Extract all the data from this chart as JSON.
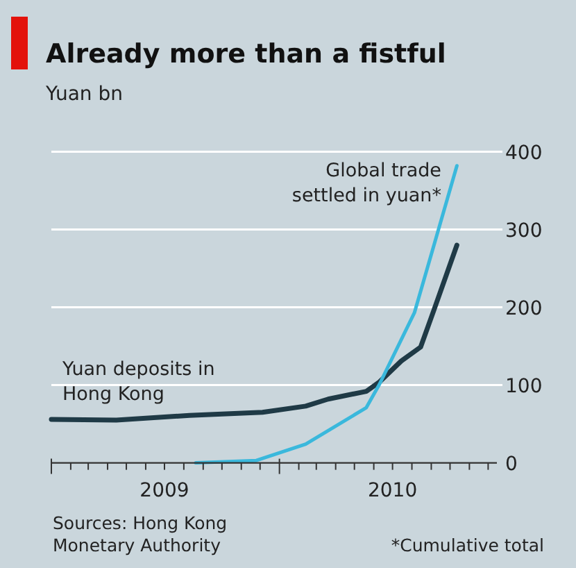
{
  "chart_data": {
    "type": "line",
    "title": "Already more than a fistful",
    "ylabel": "Yuan bn",
    "xlim": [
      "2009-01-01",
      "2010-12-15"
    ],
    "ylim": [
      0,
      400
    ],
    "yticks": [
      0,
      100,
      200,
      300,
      400
    ],
    "xticks": [
      {
        "value": "2009-01-01",
        "label": null
      },
      {
        "value": "2009-02-01",
        "label": null
      },
      {
        "value": "2009-03-01",
        "label": null
      },
      {
        "value": "2009-04-01",
        "label": null
      },
      {
        "value": "2009-05-01",
        "label": null
      },
      {
        "value": "2009-06-01",
        "label": null
      },
      {
        "value": "2009-07-01",
        "label": "2009"
      },
      {
        "value": "2009-08-01",
        "label": null
      },
      {
        "value": "2009-09-01",
        "label": null
      },
      {
        "value": "2009-10-01",
        "label": null
      },
      {
        "value": "2009-11-01",
        "label": null
      },
      {
        "value": "2009-12-01",
        "label": null
      },
      {
        "value": "2010-01-01",
        "label": null
      },
      {
        "value": "2010-02-01",
        "label": null
      },
      {
        "value": "2010-03-01",
        "label": null
      },
      {
        "value": "2010-04-01",
        "label": null
      },
      {
        "value": "2010-05-01",
        "label": null
      },
      {
        "value": "2010-06-01",
        "label": null
      },
      {
        "value": "2010-07-01",
        "label": "2010"
      },
      {
        "value": "2010-08-01",
        "label": null
      },
      {
        "value": "2010-09-01",
        "label": null
      },
      {
        "value": "2010-10-01",
        "label": null
      },
      {
        "value": "2010-11-01",
        "label": null
      },
      {
        "value": "2010-12-01",
        "label": null
      }
    ],
    "grid": "y",
    "marker": "none",
    "line_style": "solid",
    "series": [
      {
        "name": "Yuan deposits in Hong Kong",
        "color": "#1f3a46",
        "x": [
          "2009-01-01",
          "2009-04-15",
          "2009-08-10",
          "2009-12-05",
          "2010-02-12",
          "2010-03-20",
          "2010-05-20",
          "2010-06-10",
          "2010-07-15",
          "2010-08-15",
          "2010-09-05",
          "2010-10-12"
        ],
        "values": [
          56,
          55,
          61,
          65,
          73,
          82,
          92,
          104,
          131,
          149,
          196,
          280
        ]
      },
      {
        "name": "Global trade settled in yuan*",
        "color": "#3ab8dc",
        "x": [
          "2009-08-20",
          "2009-11-25",
          "2010-02-12",
          "2010-05-20",
          "2010-06-10",
          "2010-08-05",
          "2010-10-12"
        ],
        "values": [
          0,
          3,
          24,
          71,
          101,
          193,
          382
        ]
      }
    ],
    "annotations": [
      "Sources: Hong Kong Monetary Authority",
      "*Cumulative total"
    ]
  }
}
